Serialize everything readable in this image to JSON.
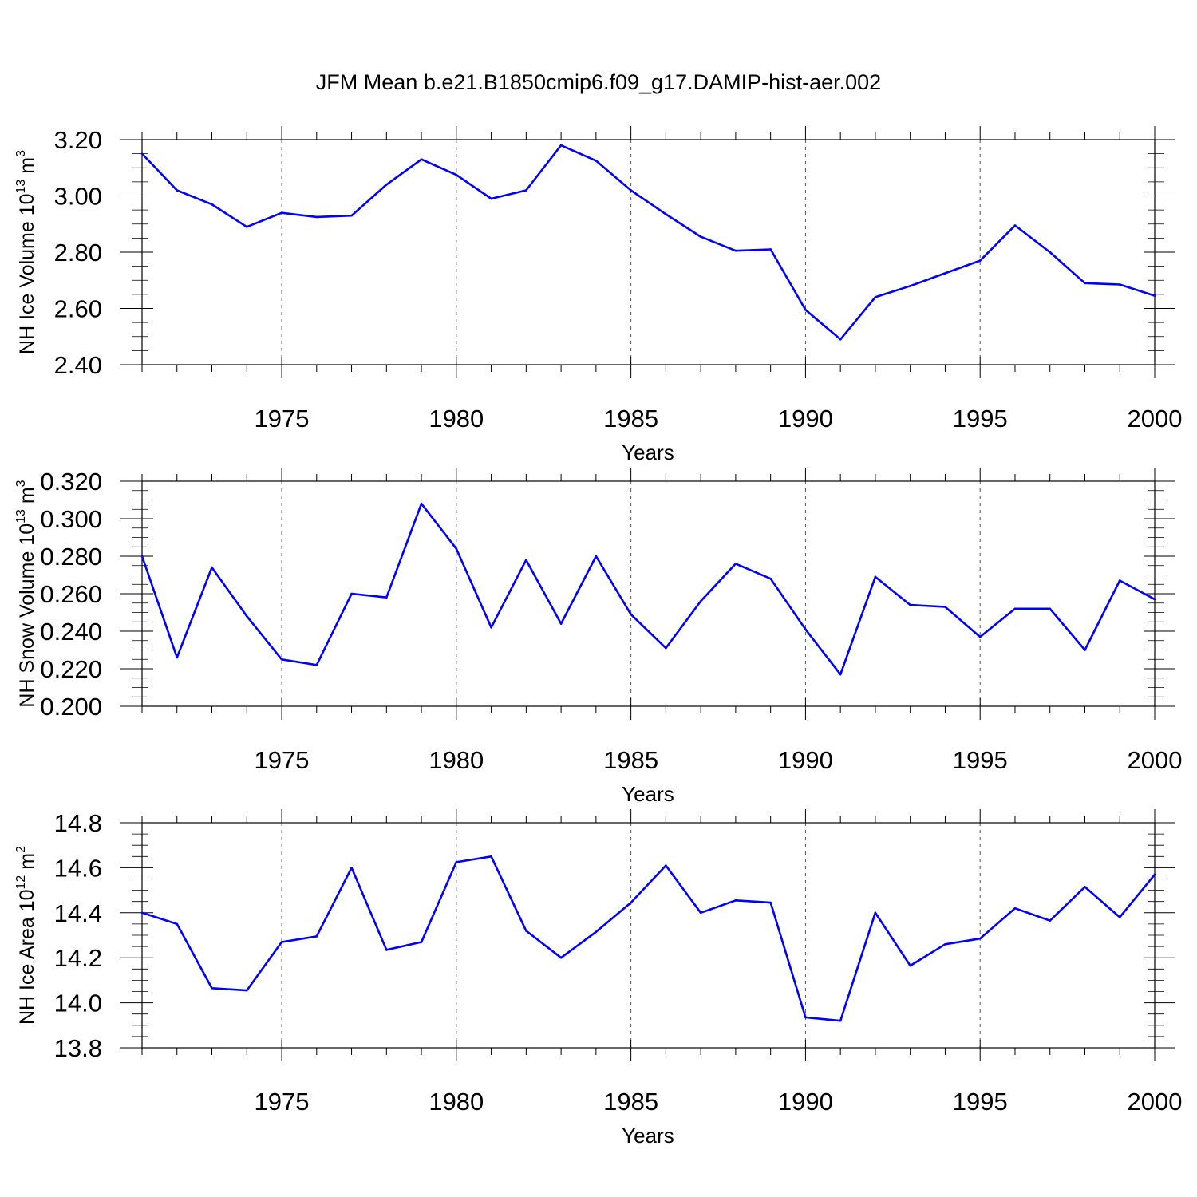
{
  "title": "JFM Mean b.e21.B1850cmip6.f09_g17.DAMIP-hist-aer.002",
  "line_color": "#0000ff",
  "chart_data": [
    {
      "type": "line",
      "ylabel_main": "NH Ice Volume 10",
      "ylabel_exp": "13",
      "ylabel_unit": " m",
      "ylabel_unit_exp": "3",
      "xlabel": "Years",
      "xlim": [
        1971,
        2000
      ],
      "ylim": [
        2.4,
        3.2
      ],
      "yticks": [
        2.4,
        2.6,
        2.8,
        3.0,
        3.2
      ],
      "ytick_labels": [
        "2.40",
        "2.60",
        "2.80",
        "3.00",
        "3.20"
      ],
      "xticks": [
        1975,
        1980,
        1985,
        1990,
        1995,
        2000
      ],
      "xtick_labels": [
        "1975",
        "1980",
        "1985",
        "1990",
        "1995",
        "2000"
      ],
      "grid": "vertical dashed at major x ticks",
      "x": [
        1971,
        1972,
        1973,
        1974,
        1975,
        1976,
        1977,
        1978,
        1979,
        1980,
        1981,
        1982,
        1983,
        1984,
        1985,
        1986,
        1987,
        1988,
        1989,
        1990,
        1991,
        1992,
        1993,
        1994,
        1995,
        1996,
        1997,
        1998,
        1999,
        2000
      ],
      "values": [
        3.15,
        3.02,
        2.97,
        2.89,
        2.94,
        2.925,
        2.93,
        3.04,
        3.13,
        3.075,
        2.99,
        3.02,
        3.18,
        3.125,
        3.02,
        2.935,
        2.855,
        2.805,
        2.81,
        2.595,
        2.49,
        2.64,
        2.68,
        2.725,
        2.77,
        2.895,
        2.8,
        2.69,
        2.685,
        2.645
      ]
    },
    {
      "type": "line",
      "ylabel_main": "NH Snow Volume 10",
      "ylabel_exp": "13",
      "ylabel_unit": " m",
      "ylabel_unit_exp": "3",
      "xlabel": "Years",
      "xlim": [
        1971,
        2000
      ],
      "ylim": [
        0.2,
        0.32
      ],
      "yticks": [
        0.2,
        0.22,
        0.24,
        0.26,
        0.28,
        0.3,
        0.32
      ],
      "ytick_labels": [
        "0.200",
        "0.220",
        "0.240",
        "0.260",
        "0.280",
        "0.300",
        "0.320"
      ],
      "xticks": [
        1975,
        1980,
        1985,
        1990,
        1995,
        2000
      ],
      "xtick_labels": [
        "1975",
        "1980",
        "1985",
        "1990",
        "1995",
        "2000"
      ],
      "grid": "vertical dashed at major x ticks",
      "x": [
        1971,
        1972,
        1973,
        1974,
        1975,
        1976,
        1977,
        1978,
        1979,
        1980,
        1981,
        1982,
        1983,
        1984,
        1985,
        1986,
        1987,
        1988,
        1989,
        1990,
        1991,
        1992,
        1993,
        1994,
        1995,
        1996,
        1997,
        1998,
        1999,
        2000
      ],
      "values": [
        0.28,
        0.226,
        0.274,
        0.248,
        0.225,
        0.222,
        0.26,
        0.258,
        0.308,
        0.284,
        0.242,
        0.278,
        0.244,
        0.28,
        0.249,
        0.231,
        0.256,
        0.276,
        0.268,
        0.241,
        0.217,
        0.269,
        0.254,
        0.253,
        0.237,
        0.252,
        0.252,
        0.23,
        0.267,
        0.257
      ]
    },
    {
      "type": "line",
      "ylabel_main": "NH Ice Area 10",
      "ylabel_exp": "12",
      "ylabel_unit": " m",
      "ylabel_unit_exp": "2",
      "xlabel": "Years",
      "xlim": [
        1971,
        2000
      ],
      "ylim": [
        13.8,
        14.8
      ],
      "yticks": [
        13.8,
        14.0,
        14.2,
        14.4,
        14.6,
        14.8
      ],
      "ytick_labels": [
        "13.8",
        "14.0",
        "14.2",
        "14.4",
        "14.6",
        "14.8"
      ],
      "xticks": [
        1975,
        1980,
        1985,
        1990,
        1995,
        2000
      ],
      "xtick_labels": [
        "1975",
        "1980",
        "1985",
        "1990",
        "1995",
        "2000"
      ],
      "grid": "vertical dashed at major x ticks",
      "x": [
        1971,
        1972,
        1973,
        1974,
        1975,
        1976,
        1977,
        1978,
        1979,
        1980,
        1981,
        1982,
        1983,
        1984,
        1985,
        1986,
        1987,
        1988,
        1989,
        1990,
        1991,
        1992,
        1993,
        1994,
        1995,
        1996,
        1997,
        1998,
        1999,
        2000
      ],
      "values": [
        14.4,
        14.35,
        14.065,
        14.055,
        14.27,
        14.295,
        14.6,
        14.235,
        14.27,
        14.625,
        14.65,
        14.32,
        14.2,
        14.315,
        14.445,
        14.61,
        14.4,
        14.455,
        14.445,
        13.935,
        13.92,
        14.4,
        14.165,
        14.26,
        14.285,
        14.42,
        14.365,
        14.515,
        14.38,
        14.57
      ]
    }
  ]
}
